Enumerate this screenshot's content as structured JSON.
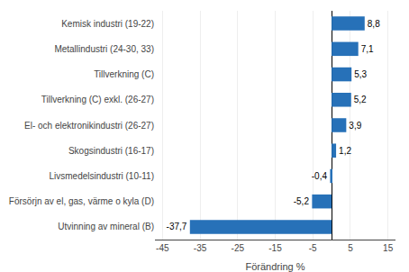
{
  "chart_data": {
    "type": "bar",
    "orientation": "horizontal",
    "categories": [
      "Utvinning av mineral (B)",
      "Försörjn av el, gas, värme o kyla (D)",
      "Livsmedelsindustri (10-11)",
      "Skogsindustri (16-17)",
      "El- och elektronikindustri (26-27)",
      "Tillverkning (C) exkl. (26-27)",
      "Tillverkning (C)",
      "Metallindustri (24-30, 33)",
      "Kemisk industri (19-22)"
    ],
    "values": [
      -37.7,
      -5.2,
      -0.4,
      1.2,
      3.9,
      5.2,
      5.3,
      7.1,
      8.8
    ],
    "value_labels": [
      "-37,7",
      "-5,2",
      "-0,4",
      "1,2",
      "3,9",
      "5,2",
      "5,3",
      "7,1",
      "8,8"
    ],
    "color": "#2771b8",
    "xlabel": "Förändring %",
    "xlim": [
      -47,
      17
    ],
    "xticks": [
      -45,
      -35,
      -25,
      -15,
      -5,
      5,
      15
    ],
    "grid": true,
    "data_labels": true
  }
}
